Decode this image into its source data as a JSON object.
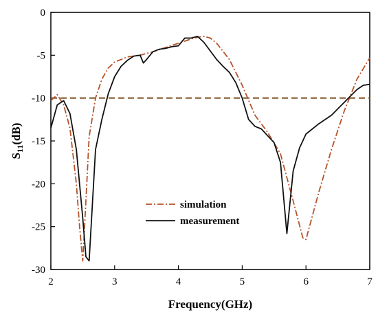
{
  "chart_data": {
    "type": "line",
    "title": "",
    "xlabel": "Frequency(GHz)",
    "ylabel": {
      "main": "S",
      "sub": "11",
      "unit": "(dB)"
    },
    "xlim": [
      2,
      7
    ],
    "ylim": [
      -30,
      0
    ],
    "x_ticks": [
      "2",
      "3",
      "4",
      "5",
      "6",
      "7"
    ],
    "y_ticks": [
      "0",
      "-5",
      "-10",
      "-15",
      "-20",
      "-25",
      "-30"
    ],
    "reference_line": {
      "y": -10,
      "color": "#7a4a1a",
      "style": "dashed"
    },
    "legend_position": "center-left",
    "series": [
      {
        "name": "simulation",
        "color": "#b5532a",
        "style": "dash-dot",
        "x": [
          2.0,
          2.1,
          2.2,
          2.3,
          2.4,
          2.45,
          2.5,
          2.55,
          2.6,
          2.7,
          2.8,
          2.9,
          3.0,
          3.2,
          3.4,
          3.6,
          3.8,
          4.0,
          4.2,
          4.3,
          4.4,
          4.5,
          4.6,
          4.8,
          5.0,
          5.2,
          5.4,
          5.6,
          5.8,
          5.95,
          6.0,
          6.2,
          6.4,
          6.6,
          6.8,
          7.0
        ],
        "y": [
          -10.3,
          -9.6,
          -10.8,
          -13.5,
          -20.0,
          -25.0,
          -29.0,
          -22.0,
          -14.5,
          -10.0,
          -7.8,
          -6.5,
          -5.8,
          -5.2,
          -5.0,
          -4.6,
          -4.1,
          -3.6,
          -3.1,
          -2.9,
          -2.8,
          -3.0,
          -3.6,
          -5.5,
          -8.5,
          -12.0,
          -14.0,
          -16.5,
          -22.0,
          -26.3,
          -26.5,
          -21.0,
          -16.0,
          -11.5,
          -7.8,
          -5.3
        ]
      },
      {
        "name": "measurement",
        "color": "#111111",
        "style": "solid",
        "x": [
          2.0,
          2.1,
          2.2,
          2.3,
          2.4,
          2.5,
          2.55,
          2.6,
          2.7,
          2.8,
          2.9,
          3.0,
          3.1,
          3.2,
          3.3,
          3.4,
          3.45,
          3.5,
          3.6,
          3.7,
          3.8,
          3.9,
          4.0,
          4.1,
          4.2,
          4.3,
          4.4,
          4.5,
          4.6,
          4.7,
          4.8,
          4.9,
          5.0,
          5.1,
          5.2,
          5.3,
          5.4,
          5.5,
          5.6,
          5.7,
          5.8,
          5.9,
          6.0,
          6.2,
          6.4,
          6.6,
          6.8,
          6.9,
          7.0
        ],
        "y": [
          -13.5,
          -10.8,
          -10.3,
          -11.8,
          -16.0,
          -24.0,
          -28.5,
          -29.0,
          -16.0,
          -12.5,
          -9.5,
          -7.5,
          -6.3,
          -5.6,
          -5.1,
          -5.0,
          -5.9,
          -5.5,
          -4.6,
          -4.3,
          -4.2,
          -4.0,
          -3.9,
          -3.0,
          -3.0,
          -2.8,
          -3.5,
          -4.5,
          -5.5,
          -6.3,
          -7.0,
          -8.2,
          -10.0,
          -12.5,
          -13.3,
          -13.6,
          -14.4,
          -15.2,
          -17.5,
          -25.8,
          -18.5,
          -15.8,
          -14.2,
          -13.0,
          -12.0,
          -10.5,
          -9.0,
          -8.5,
          -8.4
        ]
      }
    ]
  }
}
